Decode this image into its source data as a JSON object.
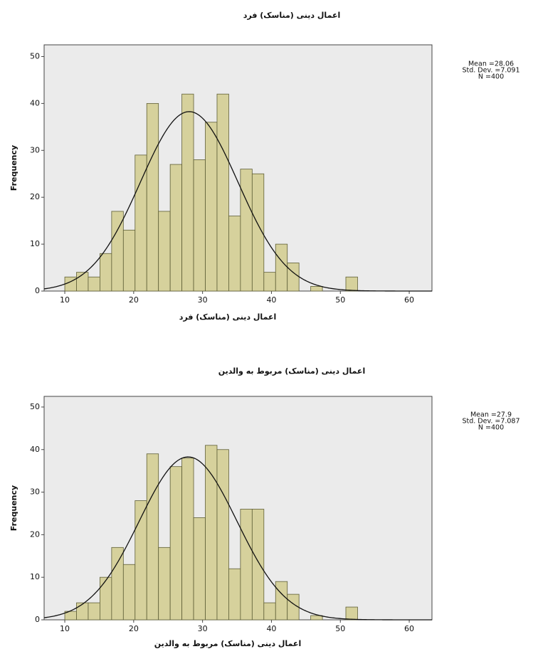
{
  "chart_data": [
    {
      "type": "histogram",
      "title": "اعمال دینی (مناسک) فرد",
      "x_label": "اعمال دینی (مناسک) فرد",
      "y_label": "Frequency",
      "bins": [
        10,
        11.7,
        13.4,
        15.1,
        16.8,
        18.5,
        20.2,
        21.9,
        23.6,
        25.3,
        27,
        28.7,
        30.4,
        32.1,
        33.8,
        35.5,
        37.2,
        38.9,
        40.6,
        42.3,
        44,
        45.7,
        47.4,
        49.1,
        50.8,
        52.5
      ],
      "counts": [
        3,
        4,
        3,
        8,
        17,
        13,
        29,
        40,
        17,
        27,
        42,
        28,
        36,
        42,
        16,
        26,
        25,
        4,
        10,
        6,
        0,
        1,
        0,
        0,
        3
      ],
      "color": "#d6d19c",
      "edge_color": "#5e5e36",
      "xlim": [
        7,
        63.3
      ],
      "xticks": [
        10,
        20,
        30,
        40,
        50,
        60
      ],
      "ylim": [
        0,
        52.5
      ],
      "yticks": [
        0,
        10,
        20,
        30,
        40,
        50
      ],
      "normal_curve": true,
      "mean": {
        "value": 28.06,
        "label": "Mean =28.06"
      },
      "std_dev": {
        "value": 7.091,
        "label": "Std. Dev. =7.091"
      },
      "n": {
        "value": 400,
        "label": "N =400"
      }
    },
    {
      "type": "histogram",
      "title": "اعمال دینی (مناسک) مربوط به والدین",
      "x_label": "اعمال دینی (مناسک) مربوط به والدین",
      "y_label": "Frequency",
      "bins": [
        10,
        11.7,
        13.4,
        15.1,
        16.8,
        18.5,
        20.2,
        21.9,
        23.6,
        25.3,
        27,
        28.7,
        30.4,
        32.1,
        33.8,
        35.5,
        37.2,
        38.9,
        40.6,
        42.3,
        44,
        45.7,
        47.4,
        49.1,
        50.8,
        52.5
      ],
      "counts": [
        2,
        4,
        4,
        10,
        17,
        13,
        28,
        39,
        17,
        36,
        38,
        24,
        41,
        40,
        12,
        26,
        26,
        4,
        9,
        6,
        0,
        1,
        0,
        0,
        3
      ],
      "color": "#d6d19c",
      "edge_color": "#5e5e36",
      "xlim": [
        7,
        63.3
      ],
      "xticks": [
        10,
        20,
        30,
        40,
        50,
        60
      ],
      "ylim": [
        0,
        52.5
      ],
      "yticks": [
        0,
        10,
        20,
        30,
        40,
        50
      ],
      "normal_curve": true,
      "mean": {
        "value": 27.9,
        "label": "Mean =27.9"
      },
      "std_dev": {
        "value": 7.087,
        "label": "Std. Dev. =7.087"
      },
      "n": {
        "value": 400,
        "label": "N =400"
      }
    }
  ]
}
